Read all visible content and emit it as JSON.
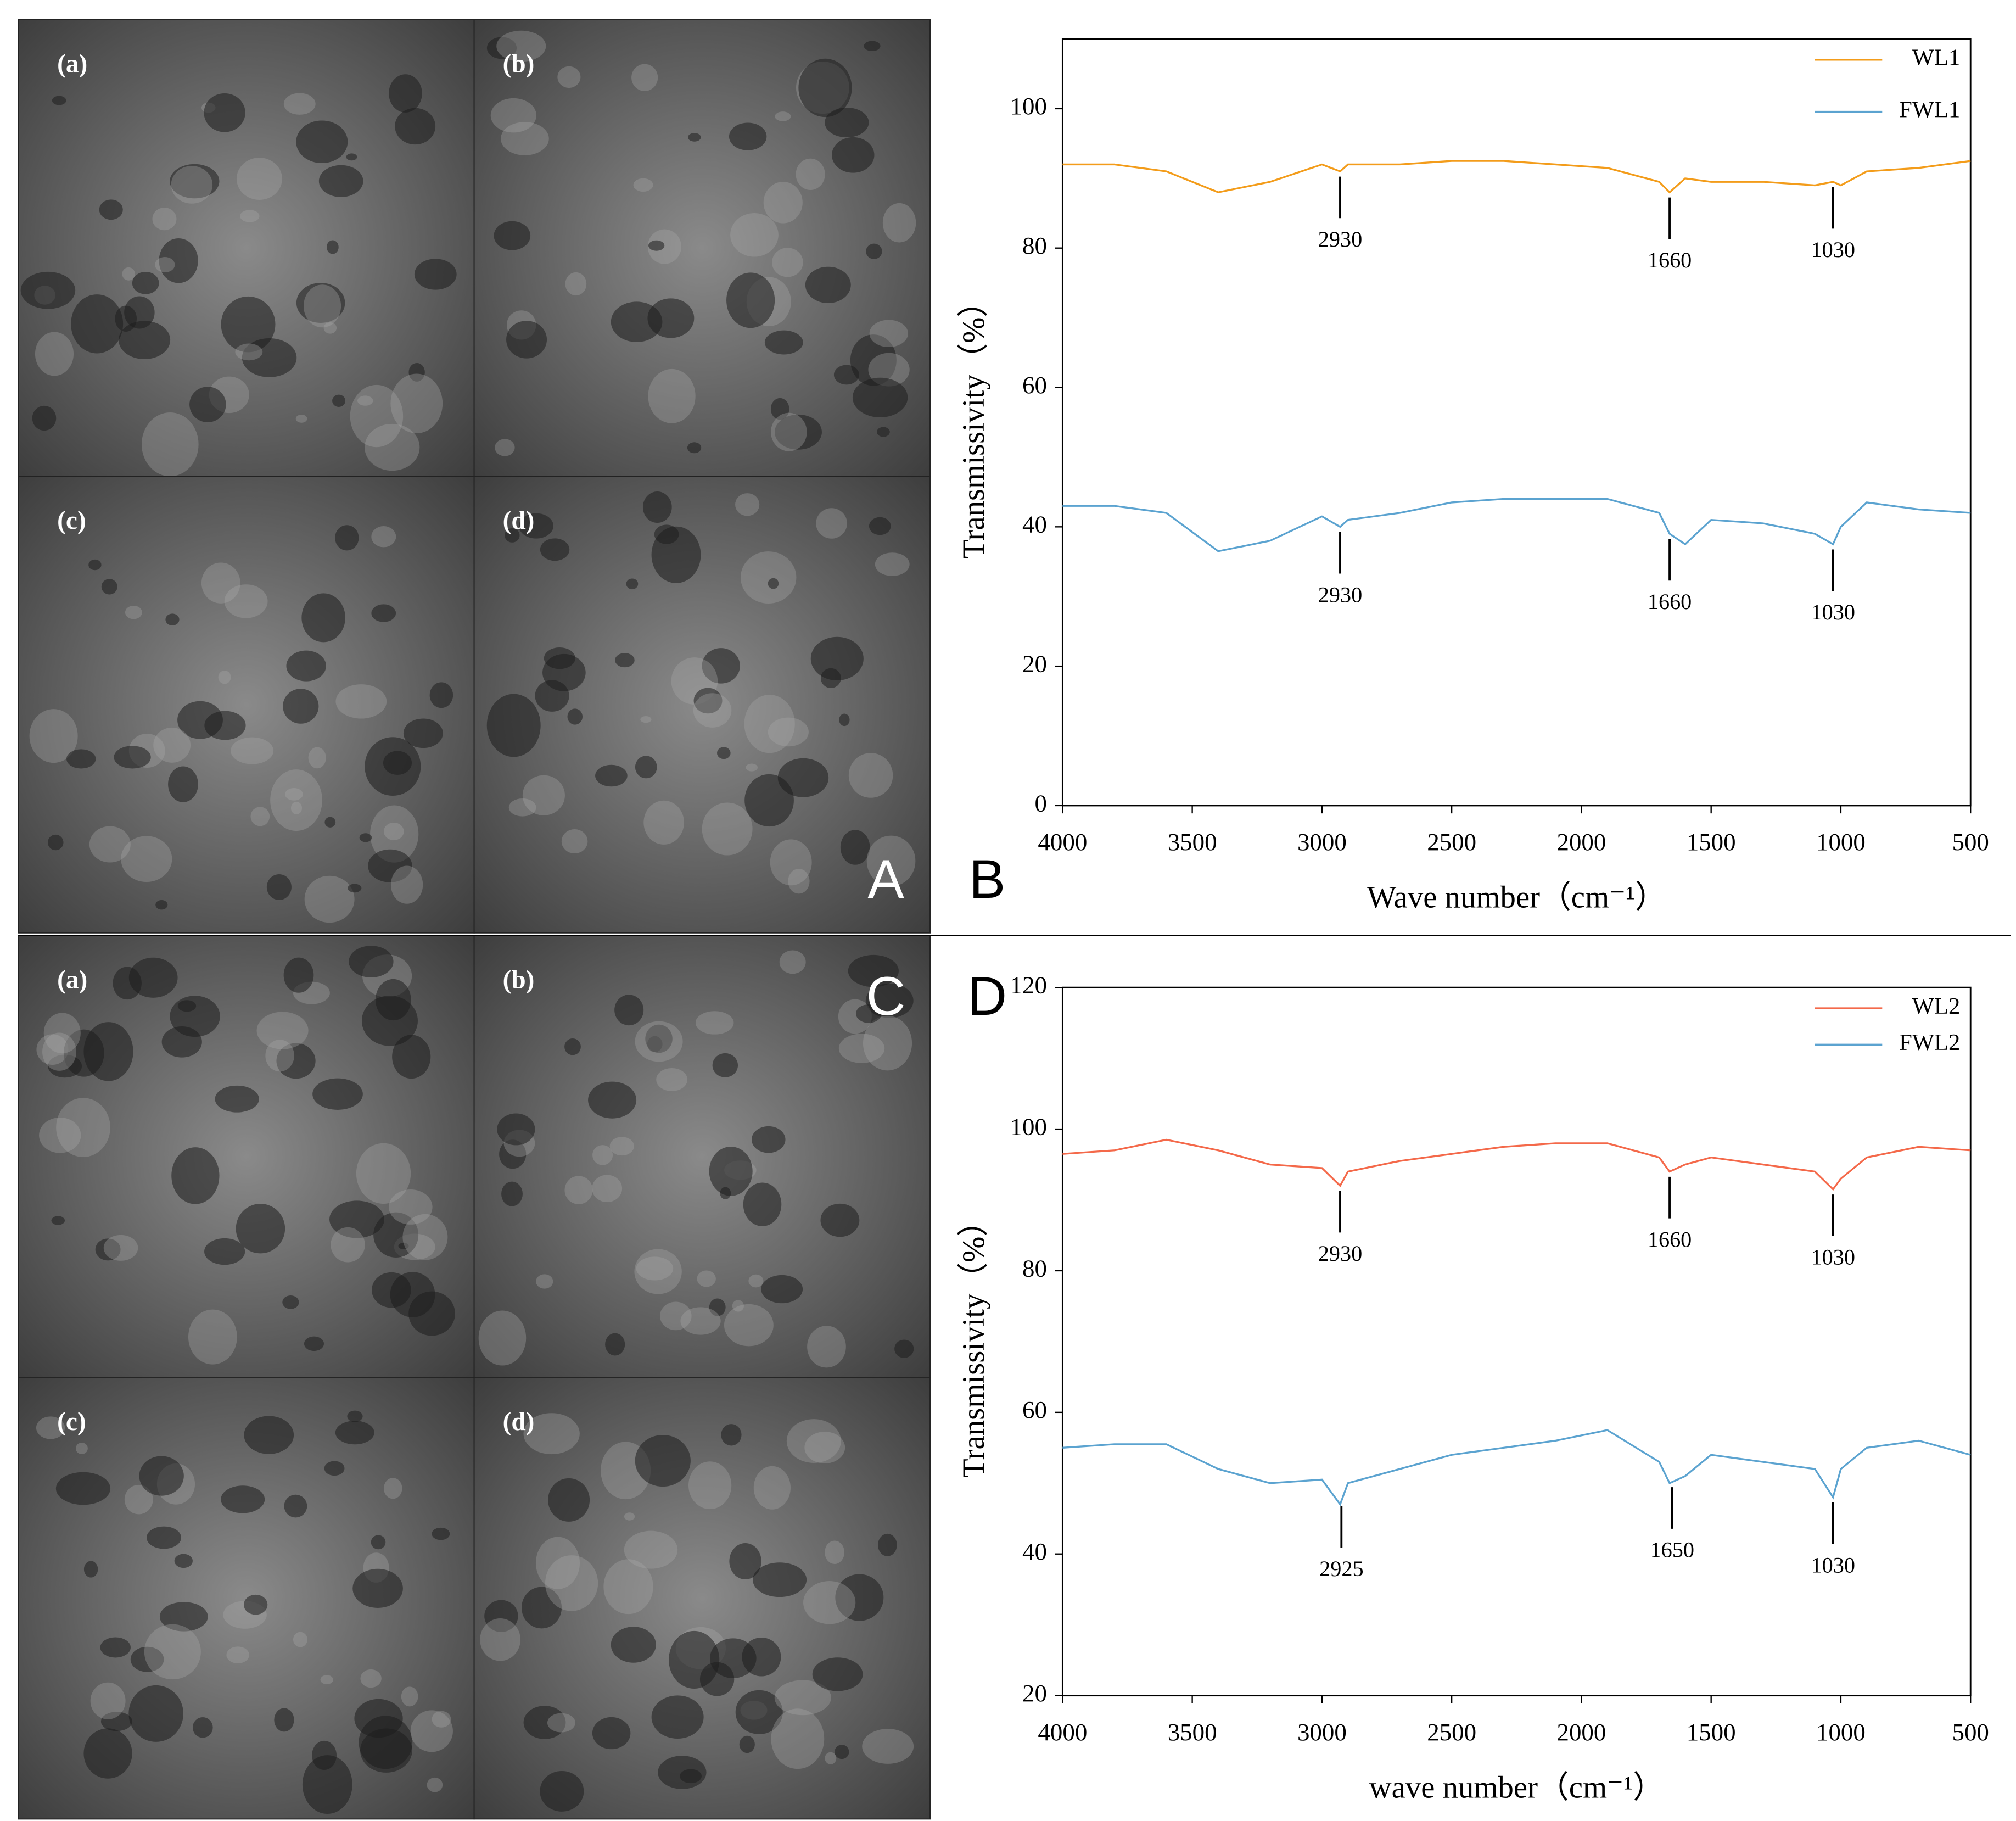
{
  "sem_panels": [
    {
      "label": "A",
      "images": [
        "(a)",
        "(b)",
        "(c)",
        "(d)"
      ]
    },
    {
      "label": "C",
      "images": [
        "(a)",
        "(b)",
        "(c)",
        "(d)"
      ]
    }
  ],
  "chart_data": [
    {
      "type": "line",
      "panel": "B",
      "x_label": "Wave number（cm⁻¹）",
      "y_label": "Transmissivity（%）",
      "x": [
        4000,
        3800,
        3600,
        3400,
        3200,
        3000,
        2930,
        2900,
        2700,
        2500,
        2300,
        2100,
        1900,
        1700,
        1660,
        1600,
        1500,
        1300,
        1100,
        1030,
        1000,
        900,
        700,
        500
      ],
      "series": [
        {
          "name": "WL1",
          "color": "#f39c1a",
          "values": [
            92,
            92,
            91,
            88,
            89.5,
            92,
            91,
            92,
            92,
            92.5,
            92.5,
            92,
            91.5,
            89.5,
            88,
            90,
            89.5,
            89.5,
            89,
            89.5,
            89,
            91,
            91.5,
            92.5
          ],
          "peaks": [
            2930,
            1660,
            1030
          ]
        },
        {
          "name": "FWL1",
          "color": "#5ba3d0",
          "values": [
            43,
            43,
            42,
            36.5,
            38,
            41.5,
            40,
            41,
            42,
            43.5,
            44,
            44,
            44,
            42,
            39,
            37.5,
            41,
            40.5,
            39,
            37.5,
            40,
            43.5,
            42.5,
            42
          ],
          "peaks": [
            2930,
            1660,
            1030
          ]
        }
      ],
      "xlim": [
        4000,
        500
      ],
      "xticks": [
        4000,
        3500,
        3000,
        2500,
        2000,
        1500,
        1000,
        500
      ],
      "ylim": [
        0,
        110
      ],
      "yticks": [
        0,
        20,
        40,
        60,
        80,
        100
      ],
      "legend": "top-right"
    },
    {
      "type": "line",
      "panel": "D",
      "x_label": "wave number（cm⁻¹）",
      "y_label": "Transmissivity（%）",
      "x": [
        4000,
        3800,
        3600,
        3400,
        3200,
        3000,
        2930,
        2900,
        2700,
        2500,
        2300,
        2100,
        1900,
        1700,
        1660,
        1600,
        1500,
        1300,
        1100,
        1030,
        1000,
        900,
        700,
        500
      ],
      "series": [
        {
          "name": "WL2",
          "color": "#f4694a",
          "values": [
            96.5,
            97,
            98.5,
            97,
            95,
            94.5,
            92,
            94,
            95.5,
            96.5,
            97.5,
            98,
            98,
            96,
            94,
            95,
            96,
            95,
            94,
            91.5,
            93,
            96,
            97.5,
            97
          ],
          "peaks": [
            2930,
            1660,
            1030
          ]
        },
        {
          "name": "FWL2",
          "color": "#5ba3d0",
          "values": [
            55,
            55.5,
            55.5,
            52,
            50,
            50.5,
            47,
            50,
            52,
            54,
            55,
            56,
            57.5,
            53,
            50,
            51,
            54,
            53,
            52,
            48,
            52,
            55,
            56,
            54
          ],
          "peaks": [
            2925,
            1650,
            1030
          ]
        }
      ],
      "xlim": [
        4000,
        500
      ],
      "xticks": [
        4000,
        3500,
        3000,
        2500,
        2000,
        1500,
        1000,
        500
      ],
      "ylim": [
        20,
        120
      ],
      "yticks": [
        20,
        40,
        60,
        80,
        100,
        120
      ],
      "legend": "top-right"
    }
  ]
}
